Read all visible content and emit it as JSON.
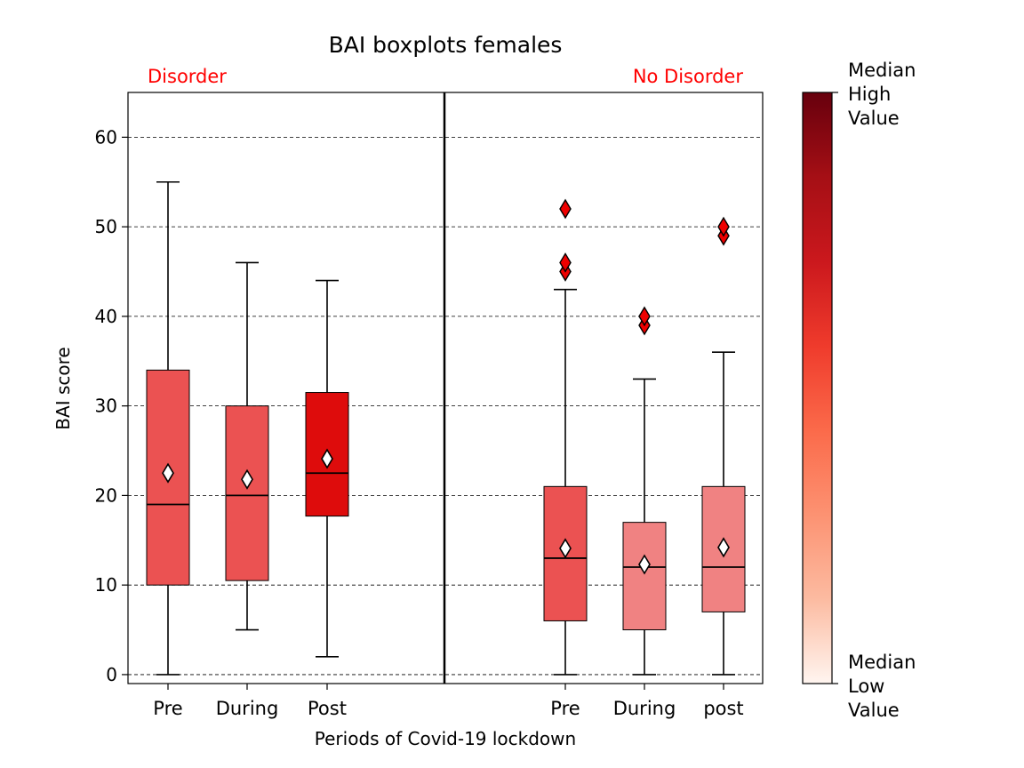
{
  "chart_data": {
    "type": "box",
    "title": "BAI boxplots females",
    "xlabel": "Periods of Covid-19 lockdown",
    "ylabel": "BAI score",
    "ylim": [
      -1,
      65
    ],
    "yticks": [
      0,
      10,
      20,
      30,
      40,
      50,
      60
    ],
    "grid": "horizontal dashed",
    "groups": [
      {
        "label": "Disorder",
        "label_color": "#ff0000",
        "boxes": [
          {
            "category": "Pre",
            "whisker_low": 0,
            "q1": 10,
            "median": 19,
            "q3": 34,
            "whisker_high": 55,
            "mean": 22.5,
            "outliers": [],
            "color": "#eb5252"
          },
          {
            "category": "During",
            "whisker_low": 5,
            "q1": 10.5,
            "median": 20,
            "q3": 30,
            "whisker_high": 46,
            "mean": 21.8,
            "outliers": [],
            "color": "#eb5252"
          },
          {
            "category": "Post",
            "whisker_low": 2,
            "q1": 17.7,
            "median": 22.5,
            "q3": 31.5,
            "whisker_high": 44,
            "mean": 24.1,
            "outliers": [],
            "color": "#de0c0c"
          }
        ]
      },
      {
        "label": "No Disorder",
        "label_color": "#ff0000",
        "boxes": [
          {
            "category": "Pre",
            "whisker_low": 0,
            "q1": 6,
            "median": 13,
            "q3": 21,
            "whisker_high": 43,
            "mean": 14.1,
            "outliers": [
              45,
              46,
              52
            ],
            "color": "#eb5252"
          },
          {
            "category": "During",
            "whisker_low": 0,
            "q1": 5,
            "median": 12,
            "q3": 17,
            "whisker_high": 33,
            "mean": 12.3,
            "outliers": [
              39,
              40
            ],
            "color": "#f08282"
          },
          {
            "category": "post",
            "whisker_low": 0,
            "q1": 7,
            "median": 12,
            "q3": 21,
            "whisker_high": 36,
            "mean": 14.2,
            "outliers": [
              49,
              50
            ],
            "color": "#f08282"
          }
        ]
      }
    ],
    "colorbar": {
      "high_label": "Median High Value",
      "low_label": "Median Low Value",
      "colors": [
        "#fff5f0",
        "#fcbba1",
        "#fc9272",
        "#fb6a4a",
        "#ef3b2c",
        "#cb181d",
        "#a50f15",
        "#67000d"
      ]
    }
  }
}
